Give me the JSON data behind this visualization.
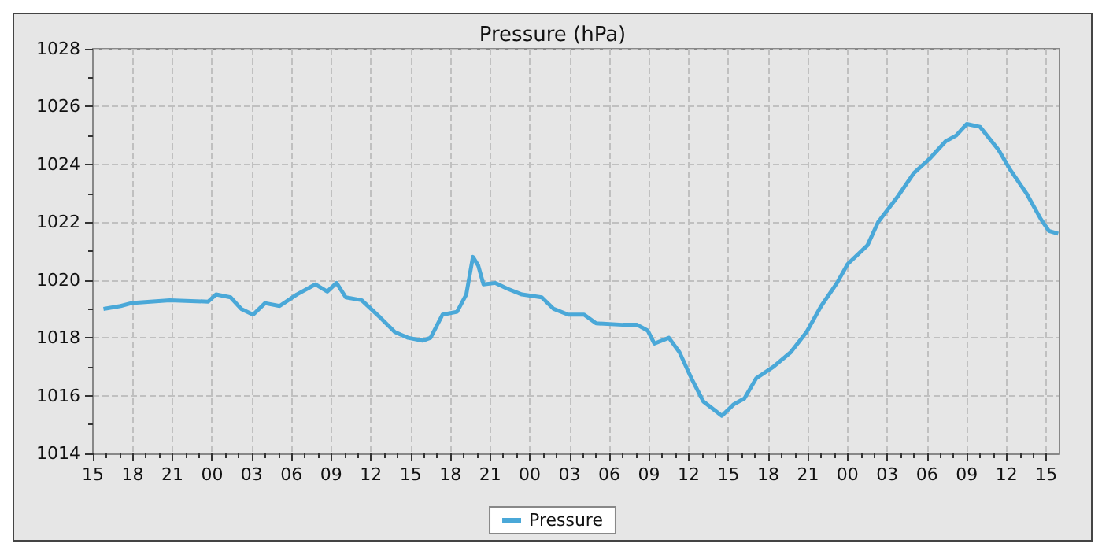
{
  "chart_data": {
    "type": "line",
    "title": "Pressure (hPa)",
    "x": [
      15.8,
      17.1,
      17.9,
      20.8,
      23.7,
      24.3,
      25.4,
      26.2,
      27.1,
      28,
      29.1,
      30.4,
      31.8,
      32.7,
      33.4,
      34.1,
      35.3,
      36.7,
      37.8,
      38.8,
      39.9,
      40.5,
      41.4,
      42.5,
      43.2,
      43.7,
      44.1,
      44.5,
      45.4,
      46.3,
      47.4,
      48.9,
      49.8,
      50.9,
      52.1,
      53,
      55,
      56.1,
      56.9,
      57.4,
      58.5,
      59.3,
      60.2,
      61.1,
      62.5,
      63.4,
      64.2,
      65.1,
      66.4,
      67.7,
      68.9,
      70,
      71.2,
      72,
      73.5,
      74.3,
      75.8,
      77,
      78.2,
      79.4,
      80.2,
      81,
      82,
      83.4,
      84.3,
      85.5,
      86.6,
      87.2,
      87.9
    ],
    "series": [
      {
        "name": "Pressure",
        "color": "#4aa8d8",
        "values": [
          1019.0,
          1019.1,
          1019.2,
          1019.3,
          1019.25,
          1019.5,
          1019.4,
          1019.0,
          1018.8,
          1019.2,
          1019.1,
          1019.5,
          1019.85,
          1019.6,
          1019.9,
          1019.4,
          1019.3,
          1018.7,
          1018.2,
          1018.0,
          1017.9,
          1018.0,
          1018.8,
          1018.9,
          1019.5,
          1020.8,
          1020.5,
          1019.85,
          1019.9,
          1019.7,
          1019.5,
          1019.4,
          1019.0,
          1018.8,
          1018.8,
          1018.5,
          1018.45,
          1018.45,
          1018.25,
          1017.8,
          1018.0,
          1017.5,
          1016.6,
          1015.8,
          1015.3,
          1015.7,
          1015.9,
          1016.6,
          1017.0,
          1017.5,
          1018.2,
          1019.1,
          1019.9,
          1020.55,
          1021.2,
          1022.0,
          1022.9,
          1023.7,
          1024.2,
          1024.8,
          1025.0,
          1025.4,
          1025.3,
          1024.5,
          1023.8,
          1023.0,
          1022.1,
          1021.7,
          1021.6
        ]
      }
    ],
    "xlim": [
      15,
      88
    ],
    "xticks": [
      {
        "value": 15,
        "label": "15"
      },
      {
        "value": 18,
        "label": "18"
      },
      {
        "value": 21,
        "label": "21"
      },
      {
        "value": 24,
        "label": "00"
      },
      {
        "value": 27,
        "label": "03"
      },
      {
        "value": 30,
        "label": "06"
      },
      {
        "value": 33,
        "label": "09"
      },
      {
        "value": 36,
        "label": "12"
      },
      {
        "value": 39,
        "label": "15"
      },
      {
        "value": 42,
        "label": "18"
      },
      {
        "value": 45,
        "label": "21"
      },
      {
        "value": 48,
        "label": "00"
      },
      {
        "value": 51,
        "label": "03"
      },
      {
        "value": 54,
        "label": "06"
      },
      {
        "value": 57,
        "label": "09"
      },
      {
        "value": 60,
        "label": "12"
      },
      {
        "value": 63,
        "label": "15"
      },
      {
        "value": 66,
        "label": "18"
      },
      {
        "value": 69,
        "label": "21"
      },
      {
        "value": 72,
        "label": "00"
      },
      {
        "value": 75,
        "label": "03"
      },
      {
        "value": 78,
        "label": "06"
      },
      {
        "value": 81,
        "label": "09"
      },
      {
        "value": 84,
        "label": "12"
      },
      {
        "value": 87,
        "label": "15"
      }
    ],
    "ylim": [
      1014,
      1028
    ],
    "yticks": [
      1014,
      1016,
      1018,
      1020,
      1022,
      1024,
      1026,
      1028
    ],
    "grid": true,
    "legend": "bottom",
    "marker": "none",
    "line_style": "solid"
  }
}
